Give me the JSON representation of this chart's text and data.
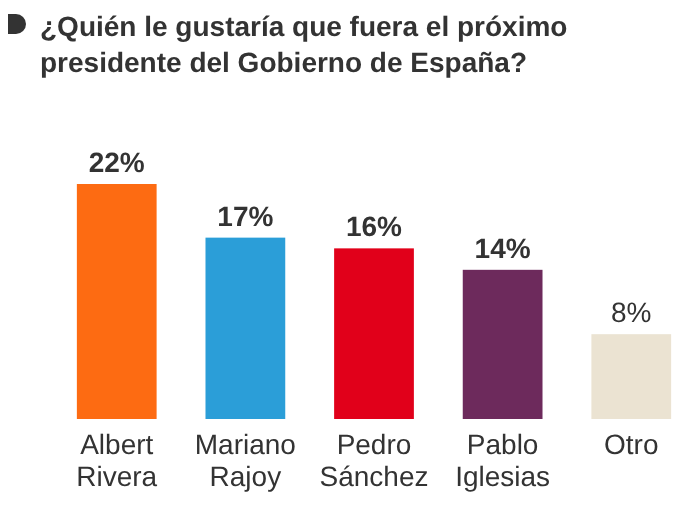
{
  "chart_data": {
    "type": "bar",
    "title": "¿Quién le gustaría que fuera el próximo presidente del Gobierno de España?",
    "categories": [
      "Albert Rivera",
      "Mariano Rajoy",
      "Pedro Sánchez",
      "Pablo Iglesias",
      "Otro"
    ],
    "values": [
      22,
      17,
      16,
      14,
      8
    ],
    "colors": [
      "#fd6b12",
      "#2b9ed8",
      "#e1001a",
      "#6d2a5c",
      "#ebe3d2"
    ],
    "value_labels": [
      "22%",
      "17%",
      "16%",
      "14%",
      "8%"
    ]
  }
}
